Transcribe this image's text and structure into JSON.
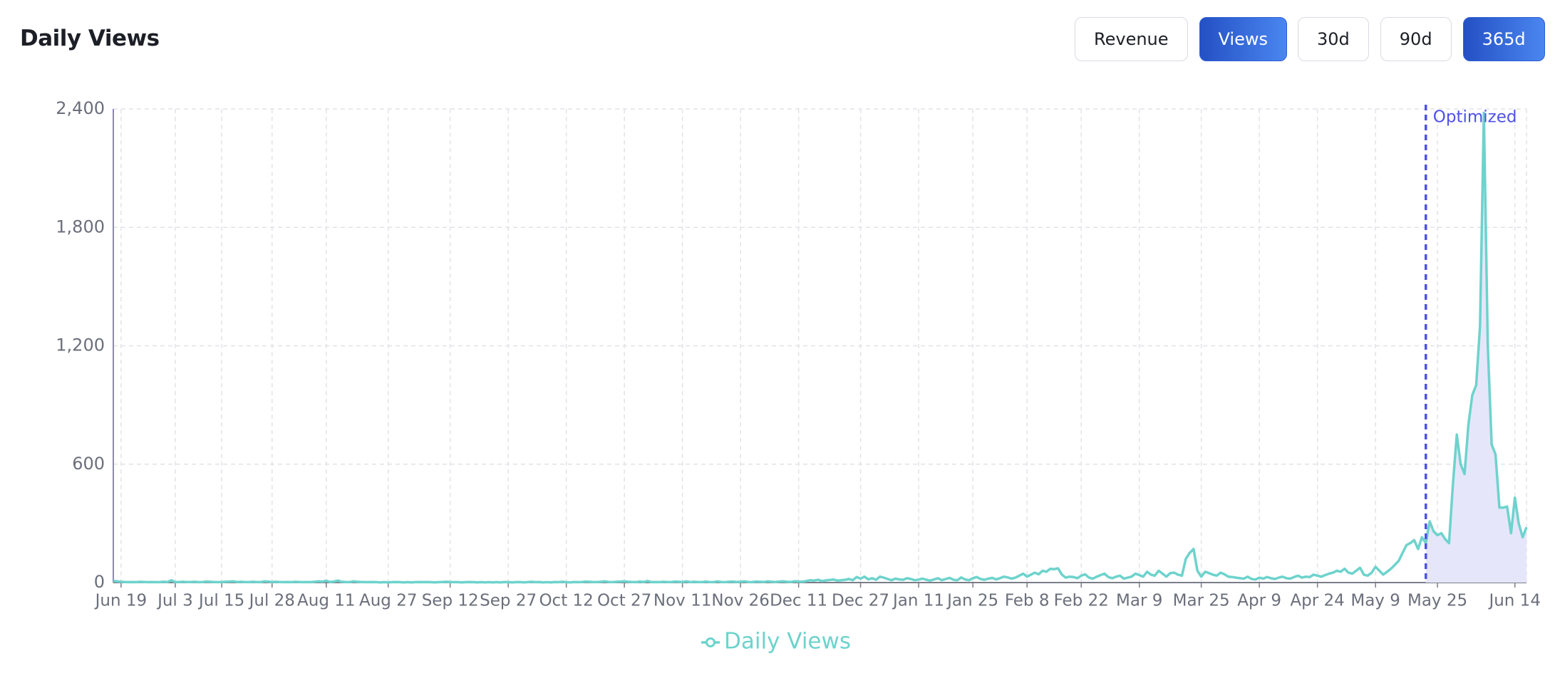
{
  "header": {
    "title": "Daily Views",
    "metric_buttons": [
      {
        "label": "Revenue",
        "active": false
      },
      {
        "label": "Views",
        "active": true
      }
    ],
    "range_buttons": [
      {
        "label": "30d",
        "active": false
      },
      {
        "label": "90d",
        "active": false
      },
      {
        "label": "365d",
        "active": true
      }
    ]
  },
  "chart_data": {
    "type": "line",
    "categories": [
      null,
      null,
      "Jun 19",
      null,
      null,
      null,
      null,
      null,
      null,
      null,
      null,
      null,
      null,
      null,
      null,
      null,
      "Jul 3",
      null,
      null,
      null,
      null,
      null,
      null,
      null,
      null,
      null,
      null,
      null,
      "Jul 15",
      null,
      null,
      null,
      null,
      null,
      null,
      null,
      null,
      null,
      null,
      null,
      null,
      "Jul 28",
      null,
      null,
      null,
      null,
      null,
      null,
      null,
      null,
      null,
      null,
      null,
      null,
      null,
      "Aug 11",
      null,
      null,
      null,
      null,
      null,
      null,
      null,
      null,
      null,
      null,
      null,
      null,
      null,
      null,
      null,
      "Aug 27",
      null,
      null,
      null,
      null,
      null,
      null,
      null,
      null,
      null,
      null,
      null,
      null,
      null,
      null,
      null,
      "Sep 12",
      null,
      null,
      null,
      null,
      null,
      null,
      null,
      null,
      null,
      null,
      null,
      null,
      null,
      null,
      "Sep 27",
      null,
      null,
      null,
      null,
      null,
      null,
      null,
      null,
      null,
      null,
      null,
      null,
      null,
      null,
      "Oct 12",
      null,
      null,
      null,
      null,
      null,
      null,
      null,
      null,
      null,
      null,
      null,
      null,
      null,
      null,
      "Oct 27",
      null,
      null,
      null,
      null,
      null,
      null,
      null,
      null,
      null,
      null,
      null,
      null,
      null,
      null,
      "Nov 11",
      null,
      null,
      null,
      null,
      null,
      null,
      null,
      null,
      null,
      null,
      null,
      null,
      null,
      null,
      "Nov 26",
      null,
      null,
      null,
      null,
      null,
      null,
      null,
      null,
      null,
      null,
      null,
      null,
      null,
      null,
      "Dec 11",
      null,
      null,
      null,
      null,
      null,
      null,
      null,
      null,
      null,
      null,
      null,
      null,
      null,
      null,
      null,
      "Dec 27",
      null,
      null,
      null,
      null,
      null,
      null,
      null,
      null,
      null,
      null,
      null,
      null,
      null,
      null,
      "Jan 11",
      null,
      null,
      null,
      null,
      null,
      null,
      null,
      null,
      null,
      null,
      null,
      null,
      null,
      "Jan 25",
      null,
      null,
      null,
      null,
      null,
      null,
      null,
      null,
      null,
      null,
      null,
      null,
      null,
      "Feb 8",
      null,
      null,
      null,
      null,
      null,
      null,
      null,
      null,
      null,
      null,
      null,
      null,
      null,
      "Feb 22",
      null,
      null,
      null,
      null,
      null,
      null,
      null,
      null,
      null,
      null,
      null,
      null,
      null,
      null,
      "Mar 9",
      null,
      null,
      null,
      null,
      null,
      null,
      null,
      null,
      null,
      null,
      null,
      null,
      null,
      null,
      null,
      "Mar 25",
      null,
      null,
      null,
      null,
      null,
      null,
      null,
      null,
      null,
      null,
      null,
      null,
      null,
      null,
      "Apr 9",
      null,
      null,
      null,
      null,
      null,
      null,
      null,
      null,
      null,
      null,
      null,
      null,
      null,
      null,
      "Apr 24",
      null,
      null,
      null,
      null,
      null,
      null,
      null,
      null,
      null,
      null,
      null,
      null,
      null,
      null,
      "May 9",
      null,
      null,
      null,
      null,
      null,
      null,
      null,
      null,
      null,
      null,
      null,
      null,
      null,
      null,
      null,
      "May 25",
      null,
      null,
      null,
      null,
      null,
      null,
      null,
      null,
      null,
      null,
      null,
      null,
      null,
      null,
      null,
      null,
      null,
      null,
      null,
      "Jun 14",
      null,
      null,
      null
    ],
    "series": [
      {
        "name": "Daily Views",
        "color": "#6dd3cc",
        "values": [
          8,
          6,
          4,
          3,
          2,
          3,
          2,
          4,
          3,
          2,
          3,
          2,
          2,
          4,
          3,
          12,
          2,
          3,
          4,
          3,
          3,
          4,
          2,
          3,
          5,
          4,
          3,
          2,
          3,
          4,
          5,
          6,
          3,
          4,
          3,
          2,
          4,
          3,
          2,
          6,
          5,
          3,
          4,
          3,
          2,
          3,
          2,
          4,
          3,
          2,
          3,
          2,
          4,
          6,
          5,
          9,
          3,
          5,
          10,
          4,
          3,
          2,
          6,
          4,
          3,
          2,
          2,
          3,
          2,
          1,
          2,
          1,
          2,
          3,
          2,
          1,
          2,
          1,
          2,
          3,
          2,
          3,
          2,
          1,
          2,
          3,
          4,
          3,
          2,
          2,
          1,
          2,
          3,
          2,
          1,
          2,
          1,
          2,
          1,
          2,
          1,
          3,
          2,
          1,
          2,
          3,
          1,
          2,
          4,
          2,
          3,
          1,
          2,
          1,
          3,
          2,
          4,
          2,
          1,
          3,
          2,
          3,
          5,
          4,
          2,
          3,
          4,
          6,
          3,
          2,
          4,
          5,
          6,
          4,
          3,
          2,
          5,
          3,
          8,
          2,
          3,
          2,
          4,
          3,
          2,
          5,
          4,
          3,
          6,
          2,
          4,
          3,
          2,
          5,
          3,
          2,
          6,
          3,
          2,
          4,
          5,
          3,
          4,
          6,
          3,
          2,
          5,
          4,
          3,
          6,
          4,
          3,
          5,
          6,
          4,
          3,
          7,
          5,
          4,
          8,
          12,
          10,
          14,
          8,
          11,
          13,
          15,
          10,
          12,
          14,
          18,
          12,
          28,
          20,
          30,
          16,
          22,
          14,
          30,
          25,
          18,
          12,
          20,
          16,
          14,
          22,
          18,
          12,
          15,
          20,
          14,
          10,
          16,
          22,
          12,
          18,
          24,
          14,
          12,
          26,
          16,
          12,
          22,
          28,
          18,
          14,
          20,
          24,
          16,
          22,
          30,
          26,
          20,
          25,
          35,
          45,
          30,
          40,
          50,
          42,
          60,
          55,
          70,
          68,
          72,
          40,
          25,
          30,
          28,
          22,
          35,
          42,
          25,
          20,
          30,
          38,
          45,
          28,
          22,
          30,
          35,
          20,
          25,
          30,
          45,
          38,
          30,
          55,
          40,
          35,
          60,
          45,
          30,
          48,
          50,
          40,
          35,
          120,
          150,
          170,
          60,
          30,
          55,
          48,
          40,
          35,
          50,
          42,
          30,
          28,
          25,
          22,
          20,
          30,
          18,
          15,
          25,
          20,
          28,
          22,
          18,
          25,
          30,
          22,
          20,
          28,
          35,
          25,
          30,
          28,
          40,
          35,
          30,
          38,
          45,
          50,
          60,
          55,
          70,
          50,
          45,
          60,
          75,
          40,
          35,
          50,
          80,
          60,
          40,
          55,
          70,
          90,
          110,
          150,
          190,
          200,
          215,
          170,
          230,
          200,
          310,
          260,
          240,
          250,
          220,
          200,
          500,
          750,
          600,
          550,
          800,
          950,
          1000,
          1300,
          2380,
          1200,
          700,
          650,
          380,
          380,
          385,
          250,
          430,
          300,
          230,
          280
        ]
      }
    ],
    "ylim": [
      0,
      2400
    ],
    "yticks": [
      0,
      600,
      {
        "value": 1200,
        "label": "1,200"
      },
      {
        "value": 1800,
        "label": "1,800"
      },
      {
        "value": 2400,
        "label": "2,400"
      }
    ],
    "grid": true,
    "annotation": {
      "text": "Optimized",
      "index": 339,
      "color": "#4f52e8",
      "shade": "#e6e6fa"
    },
    "legend": "bottom"
  }
}
